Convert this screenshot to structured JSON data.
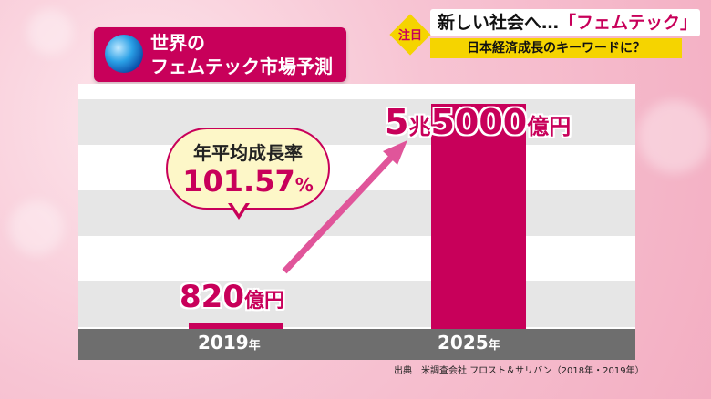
{
  "header": {
    "badge": "注目",
    "headline_prefix": "新しい社会へ…",
    "headline_accent": "「フェムテック」",
    "subheadline": "日本経済成長のキーワードに？"
  },
  "title": {
    "line1": "世界の",
    "line2": "フェムテック市場予測",
    "icon": "globe-icon"
  },
  "chart_data": {
    "type": "bar",
    "categories": [
      "2019",
      "2025"
    ],
    "category_unit": "年",
    "values_oku_yen": [
      820,
      55000
    ],
    "value_labels": [
      {
        "number": "820",
        "unit": "億円"
      },
      {
        "prefix": "5",
        "mid": "兆",
        "number": "5000",
        "unit": "億円"
      }
    ],
    "ylim": [
      0,
      60000
    ],
    "grid": true,
    "annotation": {
      "label": "年平均成長率",
      "value": "101.57",
      "unit": "%"
    },
    "colors": {
      "bar": "#c8005a",
      "arrow": "#e0559a"
    }
  },
  "source": "出典　米調査会社 フロスト＆サリバン（2018年・2019年）"
}
